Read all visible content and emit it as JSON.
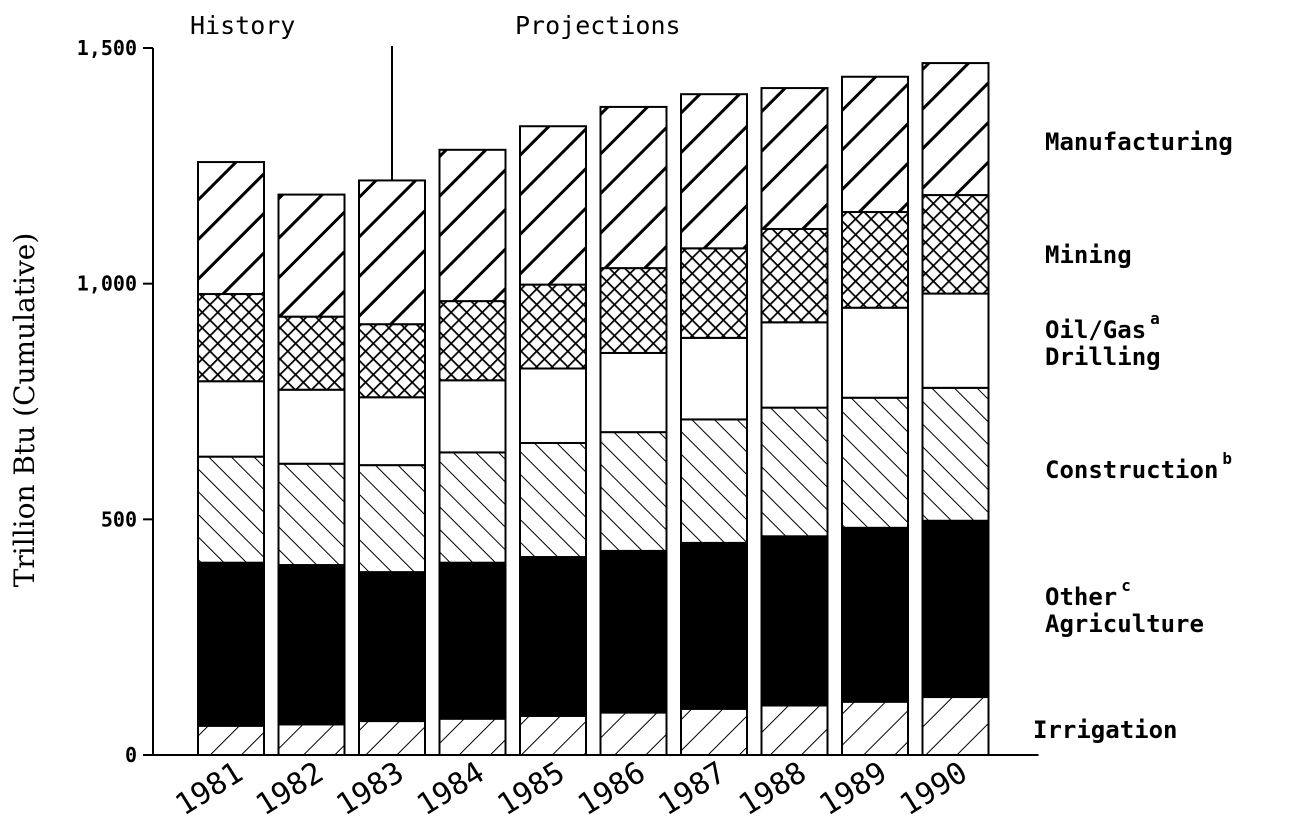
{
  "chart_data": {
    "type": "bar",
    "stacked": true,
    "ylabel": "Trillion Btu (Cumulative)",
    "ylim": [
      0,
      1500
    ],
    "yticks": [
      {
        "value": 0,
        "label": "0"
      },
      {
        "value": 500,
        "label": "500"
      },
      {
        "value": 1000,
        "label": "1,000"
      },
      {
        "value": 1500,
        "label": "1,500"
      }
    ],
    "categories": [
      "1981",
      "1982",
      "1983",
      "1984",
      "1985",
      "1986",
      "1987",
      "1988",
      "1989",
      "1990"
    ],
    "period_labels": {
      "history": "History",
      "projections": "Projections"
    },
    "history_through": "1983",
    "series": [
      {
        "name": "Irrigation",
        "label_text": "Irrigation",
        "superscript": "",
        "pattern": "diag-right-thin",
        "values": [
          62,
          65,
          72,
          77,
          83,
          90,
          98,
          105,
          113,
          123
        ]
      },
      {
        "name": "Other Agriculture",
        "label_text": "Other",
        "label_text_2": "Agriculture",
        "superscript": "c",
        "pattern": "solid",
        "values": [
          346,
          338,
          316,
          331,
          337,
          343,
          352,
          359,
          369,
          374
        ]
      },
      {
        "name": "Construction",
        "label_text": "Construction",
        "superscript": "b",
        "pattern": "diag-left",
        "values": [
          225,
          215,
          227,
          234,
          242,
          252,
          262,
          273,
          276,
          282
        ]
      },
      {
        "name": "Oil/Gas Drilling",
        "label_text": "Oil/Gas",
        "label_text_2": "Drilling",
        "superscript": "a",
        "pattern": "white",
        "values": [
          160,
          157,
          144,
          153,
          158,
          168,
          173,
          181,
          191,
          200
        ]
      },
      {
        "name": "Mining",
        "label_text": "Mining",
        "superscript": "",
        "pattern": "crosshatch",
        "values": [
          185,
          155,
          155,
          168,
          178,
          180,
          190,
          198,
          203,
          209
        ]
      },
      {
        "name": "Manufacturing",
        "label_text": "Manufacturing",
        "superscript": "",
        "pattern": "diag-right-thick",
        "values": [
          280,
          259,
          305,
          321,
          336,
          342,
          327,
          299,
          287,
          280
        ]
      }
    ]
  }
}
